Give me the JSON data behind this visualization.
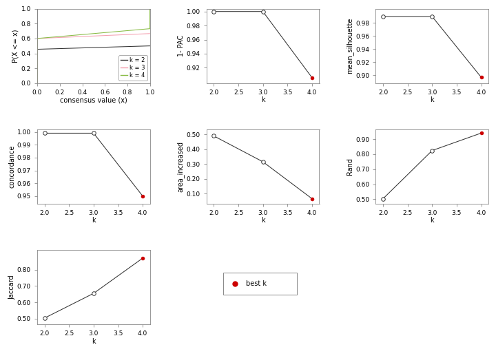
{
  "ecdf": {
    "colors": [
      "#333333",
      "#f4a0b0",
      "#88bb44"
    ],
    "labels": [
      "k = 2",
      "k = 3",
      "k = 4"
    ],
    "xlabel": "consensus value (x)",
    "ylabel": "P(X <= x)"
  },
  "pac": {
    "k": [
      2,
      3,
      4
    ],
    "values": [
      1.0,
      1.0,
      0.906
    ],
    "best_k": 4,
    "ylabel": "1- PAC",
    "xlabel": "k",
    "ylim": [
      0.898,
      1.004
    ],
    "yticks": [
      0.92,
      0.94,
      0.96,
      0.98,
      1.0
    ]
  },
  "silhouette": {
    "k": [
      2,
      3,
      4
    ],
    "values": [
      0.99,
      0.99,
      0.897
    ],
    "best_k": 4,
    "ylabel": "mean_silhouette",
    "xlabel": "k",
    "ylim": [
      0.888,
      1.002
    ],
    "yticks": [
      0.9,
      0.92,
      0.94,
      0.96,
      0.98
    ]
  },
  "concordance": {
    "k": [
      2,
      3,
      4
    ],
    "values": [
      0.999,
      0.999,
      0.95
    ],
    "best_k": 4,
    "ylabel": "concordance",
    "xlabel": "k",
    "ylim": [
      0.944,
      1.002
    ],
    "yticks": [
      0.95,
      0.96,
      0.97,
      0.98,
      0.99,
      1.0
    ]
  },
  "area_increased": {
    "k": [
      2,
      3,
      4
    ],
    "values": [
      0.49,
      0.315,
      0.065
    ],
    "best_k": 4,
    "ylabel": "area_increased",
    "xlabel": "k",
    "ylim": [
      0.03,
      0.535
    ],
    "yticks": [
      0.1,
      0.2,
      0.3,
      0.4,
      0.5
    ]
  },
  "rand": {
    "k": [
      2,
      3,
      4
    ],
    "values": [
      0.504,
      0.824,
      0.94
    ],
    "best_k": 4,
    "ylabel": "Rand",
    "xlabel": "k",
    "ylim": [
      0.47,
      0.965
    ],
    "yticks": [
      0.5,
      0.6,
      0.7,
      0.8,
      0.9
    ]
  },
  "jaccard": {
    "k": [
      2,
      3,
      4
    ],
    "values": [
      0.504,
      0.655,
      0.87
    ],
    "best_k": 4,
    "ylabel": "Jaccard",
    "xlabel": "k",
    "ylim": [
      0.465,
      0.92
    ],
    "yticks": [
      0.5,
      0.6,
      0.7,
      0.8
    ]
  },
  "line_color": "#333333",
  "open_circle_color": "white",
  "best_k_color": "#cc0000",
  "bg_color": "white",
  "font_size": 7,
  "tick_font_size": 6.5,
  "ylabel_fontsize": 7
}
